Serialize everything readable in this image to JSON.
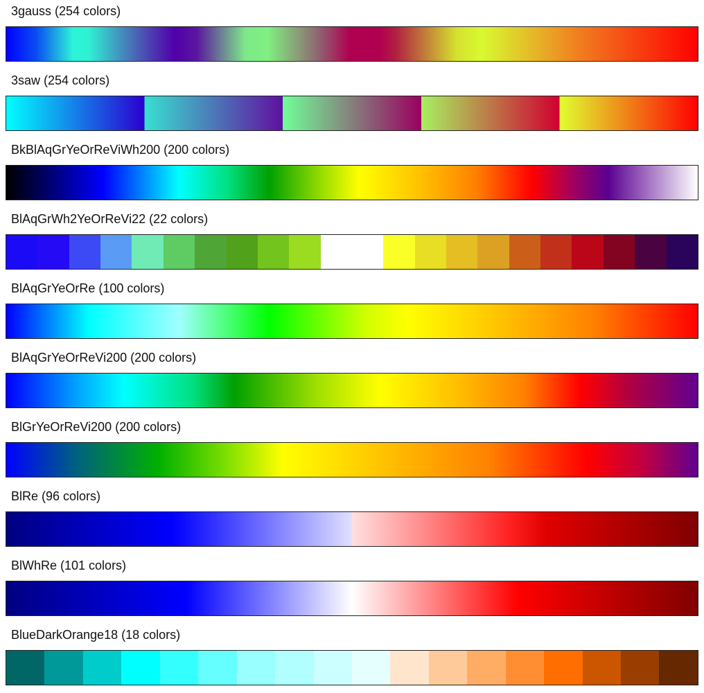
{
  "colormaps": [
    {
      "label": "3gauss (254 colors)",
      "stops": [
        [
          "#0000ff",
          0
        ],
        [
          "#0a4cf2",
          8
        ],
        [
          "#2df5d8",
          18
        ],
        [
          "#30f0d4",
          22
        ],
        [
          "#4a6cb6",
          34
        ],
        [
          "#5000aa",
          45
        ],
        [
          "#5a16a0",
          51
        ],
        [
          "#7de88a",
          64
        ],
        [
          "#80f080",
          70
        ],
        [
          "#906070",
          84
        ],
        [
          "#b00050",
          92
        ]
      ],
      "stops2": [
        [
          "#b00050",
          0
        ],
        [
          "#b02040",
          5
        ],
        [
          "#d4e030",
          24
        ],
        [
          "#d8fa30",
          32
        ],
        [
          "#f08020",
          62
        ],
        [
          "#ff0000",
          100
        ]
      ],
      "split": 54
    },
    {
      "label": "3saw (254 colors)",
      "stops": [
        [
          "#00ffff",
          0
        ],
        [
          "#2a00d0",
          20
        ],
        [
          "#38e0d0",
          20
        ],
        [
          "#6010a0",
          40
        ],
        [
          "#70ff98",
          40
        ],
        [
          "#9a0060",
          60
        ],
        [
          "#a8f060",
          60
        ],
        [
          "#d00030",
          80
        ],
        [
          "#e0ff30",
          80
        ],
        [
          "#ff0000",
          100
        ]
      ]
    },
    {
      "label": "BkBlAqGrYeOrReViWh200 (200 colors)",
      "stops": [
        [
          "#000000",
          0
        ],
        [
          "#000090",
          8
        ],
        [
          "#0000ff",
          14
        ],
        [
          "#00ffff",
          25
        ],
        [
          "#00e080",
          32
        ],
        [
          "#00a000",
          38
        ],
        [
          "#a0e000",
          46
        ],
        [
          "#ffff00",
          51
        ],
        [
          "#ffc000",
          60
        ],
        [
          "#ff8000",
          68
        ],
        [
          "#ff0000",
          76
        ],
        [
          "#a00060",
          82
        ],
        [
          "#5a0090",
          87
        ],
        [
          "#ffffff",
          100
        ]
      ]
    },
    {
      "label": "BlAqGrWh2YeOrReVi22 (22 colors)",
      "cells": [
        "#1a0af5",
        "#240af5",
        "#3c4af5",
        "#5a9cf5",
        "#70ebb6",
        "#5ecc62",
        "#4fa535",
        "#52a11b",
        "#73c41d",
        "#9cdc20",
        "#ffffff",
        "#ffffff",
        "#faff28",
        "#e8de24",
        "#e4be22",
        "#dca122",
        "#cb5f19",
        "#c1301a",
        "#bb0519",
        "#820420",
        "#4a0340",
        "#29045a"
      ]
    },
    {
      "label": "BlAqGrYeOrRe (100 colors)",
      "stops": [
        [
          "#0000ff",
          0
        ],
        [
          "#00ffff",
          12
        ],
        [
          "#a0ffff",
          25
        ],
        [
          "#00ff00",
          38
        ],
        [
          "#d0ff00",
          52
        ],
        [
          "#ffff00",
          58
        ],
        [
          "#ffc000",
          72
        ],
        [
          "#ff8000",
          85
        ],
        [
          "#ff0000",
          100
        ]
      ]
    },
    {
      "label": "BlAqGrYeOrReVi200 (200 colors)",
      "stops": [
        [
          "#0000ff",
          0
        ],
        [
          "#00a0ff",
          10
        ],
        [
          "#00ffff",
          17
        ],
        [
          "#00e080",
          27
        ],
        [
          "#00a000",
          33
        ],
        [
          "#a0e000",
          45
        ],
        [
          "#ffff00",
          54
        ],
        [
          "#ffc000",
          65
        ],
        [
          "#ff8000",
          75
        ],
        [
          "#ff0000",
          83
        ],
        [
          "#b00040",
          90
        ],
        [
          "#600090",
          100
        ]
      ]
    },
    {
      "label": "BlGrYeOrReVi200 (200 colors)",
      "stops": [
        [
          "#0000ff",
          0
        ],
        [
          "#006080",
          10
        ],
        [
          "#00b000",
          22
        ],
        [
          "#80e000",
          32
        ],
        [
          "#ffff00",
          40
        ],
        [
          "#ffc000",
          55
        ],
        [
          "#ff8000",
          70
        ],
        [
          "#ff0000",
          84
        ],
        [
          "#c00040",
          92
        ],
        [
          "#600090",
          100
        ]
      ]
    },
    {
      "label": "BlRe (96 colors)",
      "stops": [
        [
          "#000080",
          0
        ],
        [
          "#0000ff",
          24
        ],
        [
          "#2020ff",
          28
        ],
        [
          "#e0e0ff",
          50
        ],
        [
          "#ffe0e0",
          50
        ],
        [
          "#ff2020",
          73
        ],
        [
          "#e00000",
          78
        ],
        [
          "#800000",
          100
        ]
      ]
    },
    {
      "label": "BlWhRe (101 colors)",
      "stops": [
        [
          "#000080",
          0
        ],
        [
          "#0000ff",
          26
        ],
        [
          "#ffffff",
          50
        ],
        [
          "#ff0000",
          74
        ],
        [
          "#800000",
          100
        ]
      ]
    },
    {
      "label": "BlueDarkOrange18 (18 colors)",
      "cells": [
        "#006666",
        "#009999",
        "#00cccc",
        "#00ffff",
        "#33ffff",
        "#66ffff",
        "#99ffff",
        "#b2ffff",
        "#ccffff",
        "#e5ffff",
        "#ffe5cc",
        "#ffca99",
        "#ffad65",
        "#ff8e33",
        "#ff6e00",
        "#cc5500",
        "#993d00",
        "#662800"
      ]
    }
  ]
}
